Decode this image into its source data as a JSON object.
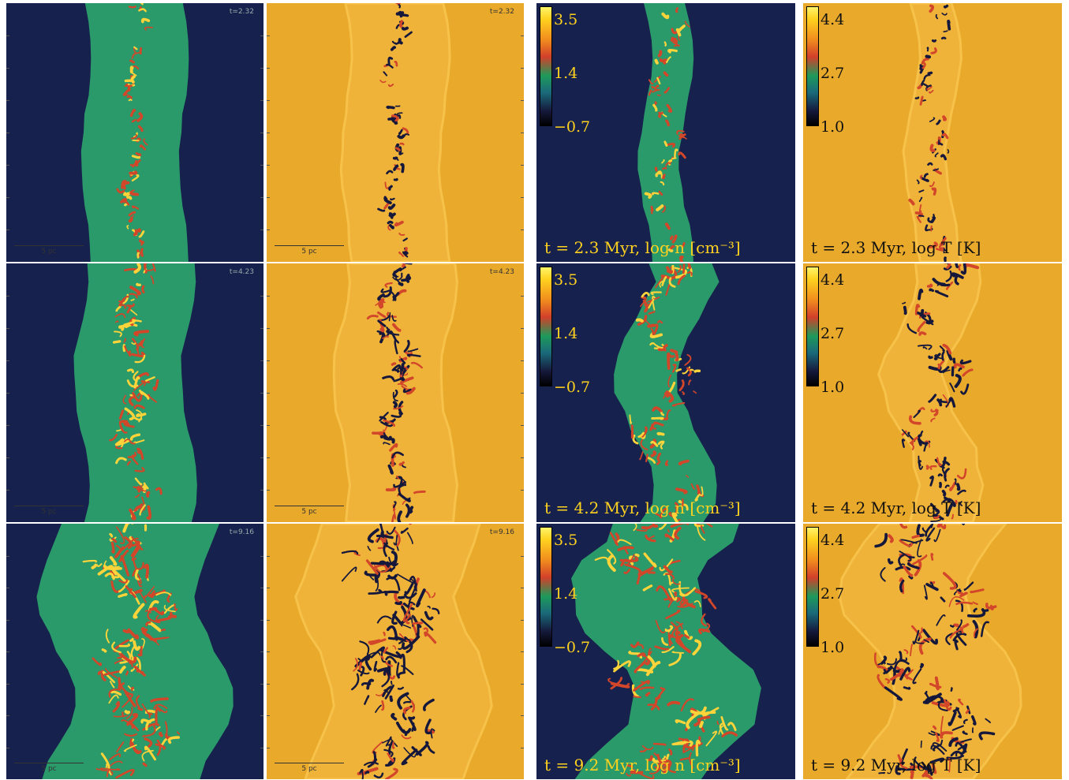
{
  "rows": [
    {
      "time_label": "t=2.32",
      "scale_label": "5 pc",
      "density_caption": "t = 2.3 Myr, log n [cm⁻³]",
      "temp_caption": "t = 2.3 Myr, log T [K]"
    },
    {
      "time_label": "t=4.23",
      "scale_label": "5 pc",
      "density_caption": "t = 4.2 Myr, log n [cm⁻³]",
      "temp_caption": "t = 4.2 Myr, log T [K]"
    },
    {
      "time_label": "t=9.16",
      "scale_label": "5 pc",
      "density_caption": "t = 9.2 Myr, log n [cm⁻³]",
      "temp_caption": "t = 9.2 Myr, log T [K]"
    }
  ],
  "density_colorbar": {
    "max": "3.5",
    "mid": "1.4",
    "min": "−0.7"
  },
  "temp_colorbar": {
    "max": "4.4",
    "mid": "2.7",
    "min": "1.0"
  },
  "colors": {
    "background_dark": "#16214d",
    "slab_green": "#2b9a6a",
    "background_orange": "#e9a92a",
    "slab_orange": "#f0b33a",
    "filament_red": "#d2462a",
    "filament_yellow": "#ffd43a",
    "filament_black": "#15183a",
    "label_yellow": "#ffd21f"
  }
}
